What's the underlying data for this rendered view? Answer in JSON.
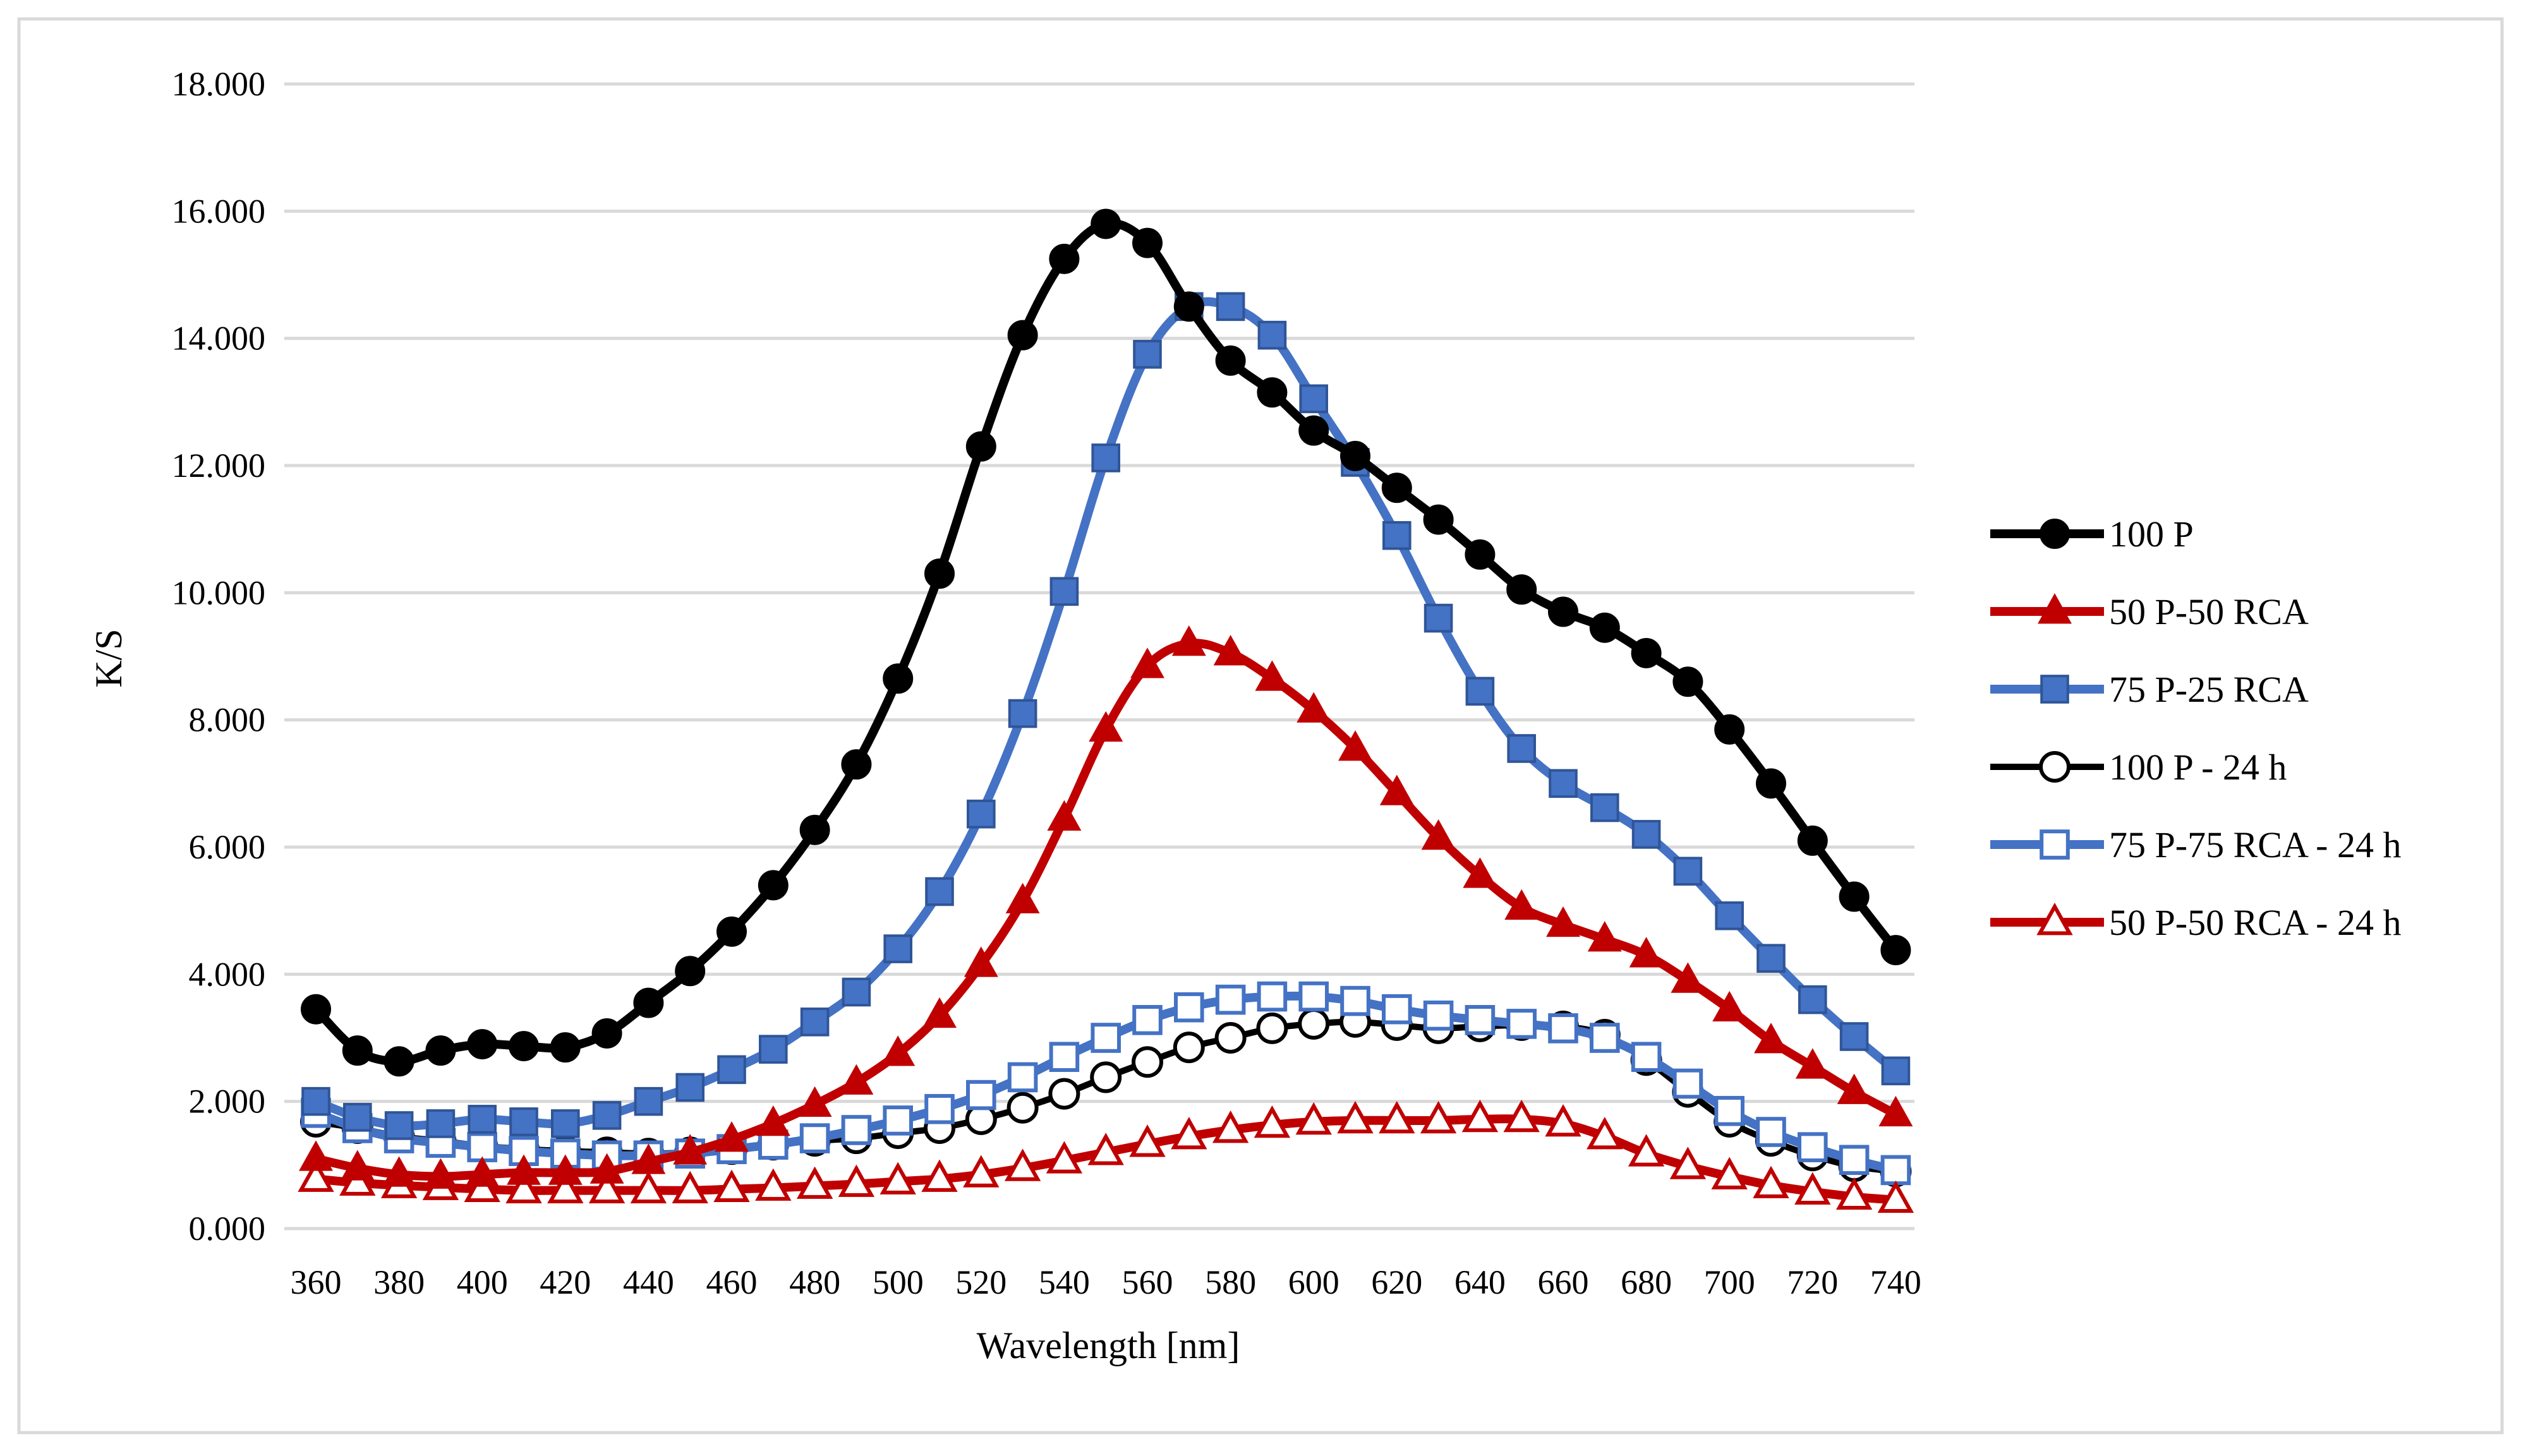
{
  "chart_data": {
    "type": "line",
    "title": "",
    "xlabel": "Wavelength [nm]",
    "ylabel": "K/S",
    "xlim": [
      360,
      740
    ],
    "ylim": [
      0,
      18
    ],
    "grid": "horizontal",
    "legend_position": "right",
    "x": [
      360,
      370,
      380,
      390,
      400,
      410,
      420,
      430,
      440,
      450,
      460,
      470,
      480,
      490,
      500,
      510,
      520,
      530,
      540,
      550,
      560,
      570,
      580,
      590,
      600,
      610,
      620,
      630,
      640,
      650,
      660,
      670,
      680,
      690,
      700,
      710,
      720,
      730,
      740
    ],
    "x_ticks": [
      "360",
      "380",
      "400",
      "420",
      "440",
      "460",
      "480",
      "500",
      "520",
      "540",
      "560",
      "580",
      "600",
      "620",
      "640",
      "660",
      "680",
      "700",
      "720",
      "740"
    ],
    "y_ticks": [
      "0.000",
      "2.000",
      "4.000",
      "6.000",
      "8.000",
      "10.000",
      "12.000",
      "14.000",
      "16.000",
      "18.000"
    ],
    "series": [
      {
        "name": "100 P",
        "color": "#000000",
        "marker": "circle",
        "filled": true,
        "line": "bold",
        "values": [
          3.45,
          2.8,
          2.63,
          2.8,
          2.9,
          2.87,
          2.85,
          3.07,
          3.55,
          4.05,
          4.67,
          5.4,
          6.27,
          7.3,
          8.65,
          10.3,
          12.3,
          14.05,
          15.25,
          15.8,
          15.5,
          14.5,
          13.65,
          13.15,
          12.55,
          12.15,
          11.65,
          11.15,
          10.6,
          10.05,
          9.7,
          9.45,
          9.05,
          8.6,
          7.85,
          7.0,
          6.1,
          5.22,
          4.38
        ]
      },
      {
        "name": "50 P-50 RCA",
        "color": "#c00000",
        "marker": "triangle",
        "filled": true,
        "line": "bold",
        "values": [
          1.1,
          0.95,
          0.85,
          0.82,
          0.85,
          0.88,
          0.88,
          0.9,
          1.05,
          1.2,
          1.4,
          1.65,
          1.95,
          2.3,
          2.75,
          3.35,
          4.15,
          5.15,
          6.45,
          7.85,
          8.85,
          9.2,
          9.05,
          8.65,
          8.15,
          7.55,
          6.85,
          6.15,
          5.55,
          5.05,
          4.78,
          4.55,
          4.3,
          3.9,
          3.45,
          2.95,
          2.55,
          2.15,
          1.8
        ]
      },
      {
        "name": "75 P-25 RCA",
        "color": "#4472c4",
        "marker": "square",
        "filled": true,
        "line": "bold",
        "values": [
          2.0,
          1.75,
          1.62,
          1.65,
          1.72,
          1.68,
          1.65,
          1.78,
          2.0,
          2.22,
          2.5,
          2.82,
          3.25,
          3.72,
          4.4,
          5.3,
          6.52,
          8.1,
          10.02,
          12.12,
          13.75,
          14.5,
          14.5,
          14.05,
          13.05,
          12.05,
          10.9,
          9.6,
          8.45,
          7.55,
          7.0,
          6.62,
          6.2,
          5.62,
          4.92,
          4.25,
          3.6,
          3.02,
          2.48
        ]
      },
      {
        "name": "100 P - 24 h",
        "color": "#000000",
        "marker": "circle",
        "filled": false,
        "line": "thin",
        "values": [
          1.68,
          1.58,
          1.45,
          1.38,
          1.3,
          1.25,
          1.22,
          1.2,
          1.18,
          1.2,
          1.25,
          1.32,
          1.38,
          1.42,
          1.5,
          1.58,
          1.72,
          1.9,
          2.12,
          2.38,
          2.62,
          2.85,
          3.0,
          3.15,
          3.22,
          3.25,
          3.2,
          3.15,
          3.18,
          3.2,
          3.18,
          3.05,
          2.65,
          2.15,
          1.68,
          1.38,
          1.15,
          0.98,
          0.9
        ]
      },
      {
        "name": "75 P-75 RCA - 24 h",
        "color": "#4472c4",
        "marker": "square",
        "filled": false,
        "line": "bold",
        "values": [
          1.82,
          1.58,
          1.42,
          1.35,
          1.28,
          1.22,
          1.18,
          1.15,
          1.15,
          1.18,
          1.25,
          1.32,
          1.42,
          1.55,
          1.7,
          1.88,
          2.1,
          2.38,
          2.7,
          3.0,
          3.28,
          3.48,
          3.6,
          3.65,
          3.65,
          3.58,
          3.45,
          3.35,
          3.28,
          3.22,
          3.15,
          3.0,
          2.7,
          2.28,
          1.85,
          1.52,
          1.28,
          1.08,
          0.92
        ]
      },
      {
        "name": "50 P-50 RCA - 24 h",
        "color": "#c00000",
        "marker": "triangle",
        "filled": false,
        "line": "bold",
        "values": [
          0.78,
          0.72,
          0.68,
          0.65,
          0.62,
          0.6,
          0.6,
          0.6,
          0.6,
          0.6,
          0.62,
          0.64,
          0.67,
          0.7,
          0.74,
          0.78,
          0.85,
          0.95,
          1.07,
          1.2,
          1.33,
          1.45,
          1.55,
          1.63,
          1.68,
          1.7,
          1.7,
          1.7,
          1.72,
          1.72,
          1.65,
          1.45,
          1.18,
          0.98,
          0.82,
          0.68,
          0.58,
          0.5,
          0.45
        ]
      }
    ]
  }
}
